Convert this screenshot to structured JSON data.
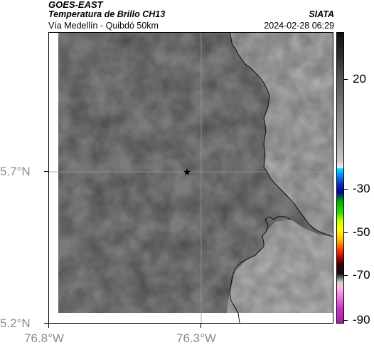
{
  "header": {
    "satellite": "GOES-EAST",
    "product": "Temperatura de Brillo CH13",
    "location": "Vía Medellín - Quibdó 50km",
    "source": "SIATA",
    "datetime": "2024-02-28 06:29"
  },
  "map": {
    "y_axis": {
      "ticks": [
        {
          "label": "5.7°N",
          "lat": 5.7
        },
        {
          "label": "5.2°N",
          "lat": 5.2
        }
      ]
    },
    "x_axis": {
      "ticks": [
        {
          "label": "76.8°W",
          "lon": -76.8
        },
        {
          "label": "76.3°W",
          "lon": -76.3
        }
      ]
    },
    "grid": true,
    "marker": {
      "icon": "star-icon",
      "lat": 5.7,
      "lon": -76.35
    },
    "colors": {
      "cloud_gray": "#7d7d7d",
      "terrain_gray": "#8e8e8e",
      "boundary": "#000000"
    }
  },
  "colorbar": {
    "ticks": [
      {
        "label": "20",
        "value": 20
      },
      {
        "label": "-30",
        "value": -30
      },
      {
        "label": "-50",
        "value": -50
      },
      {
        "label": "-70",
        "value": -70
      },
      {
        "label": "-90",
        "value": -90
      }
    ]
  }
}
